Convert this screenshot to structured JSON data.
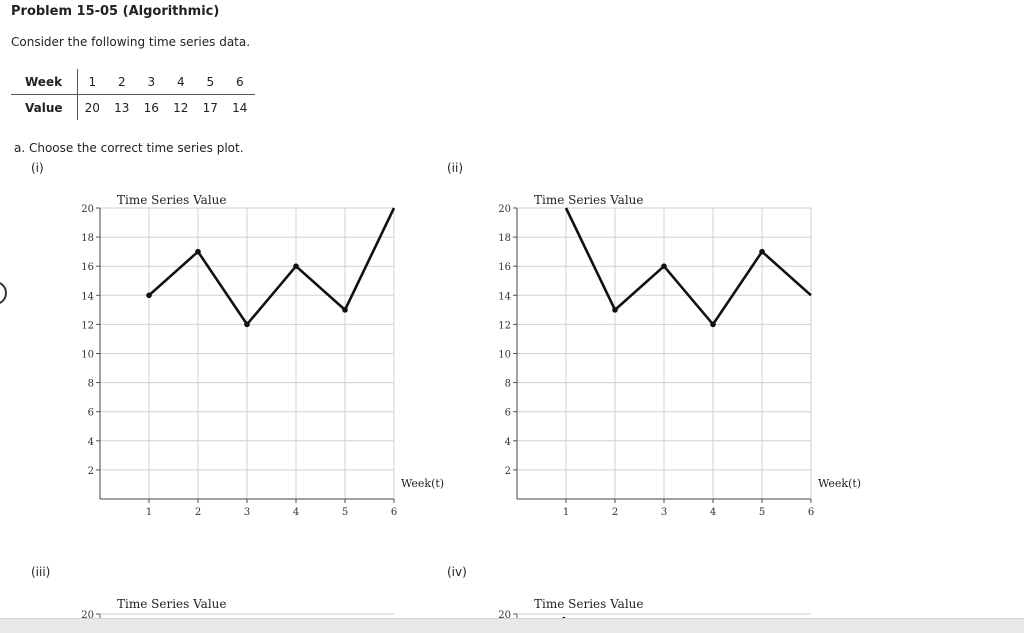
{
  "problem": {
    "title": "Problem 15-05 (Algorithmic)",
    "intro": "Consider the following time series data."
  },
  "table": {
    "row_headers": [
      "Week",
      "Value"
    ],
    "weeks": [
      "1",
      "2",
      "3",
      "4",
      "5",
      "6"
    ],
    "values": [
      "20",
      "13",
      "16",
      "12",
      "17",
      "14"
    ]
  },
  "question": {
    "text": "a. Choose the correct time series plot."
  },
  "options": [
    "(i)",
    "(ii)",
    "(iii)",
    "(iv)"
  ],
  "chart_data": [
    {
      "type": "line",
      "option": "(i)",
      "title": "Time Series Value",
      "xlabel": "Week(t)",
      "ylabel": "",
      "x": [
        1,
        2,
        3,
        4,
        5,
        6
      ],
      "y": [
        14,
        17,
        12,
        16,
        13,
        20
      ],
      "xlim": [
        0,
        6
      ],
      "ylim": [
        0,
        20
      ],
      "xticks": [
        "1",
        "2",
        "3",
        "4",
        "5",
        "6"
      ],
      "yticks": [
        "2",
        "4",
        "6",
        "8",
        "10",
        "12",
        "14",
        "16",
        "18",
        "20"
      ],
      "grid": true,
      "line_color": "#111111"
    },
    {
      "type": "line",
      "option": "(ii)",
      "title": "Time Series Value",
      "xlabel": "Week(t)",
      "ylabel": "",
      "x": [
        1,
        2,
        3,
        4,
        5,
        6
      ],
      "y": [
        20,
        13,
        16,
        12,
        17,
        14
      ],
      "xlim": [
        0,
        6
      ],
      "ylim": [
        0,
        20
      ],
      "xticks": [
        "1",
        "2",
        "3",
        "4",
        "5",
        "6"
      ],
      "yticks": [
        "2",
        "4",
        "6",
        "8",
        "10",
        "12",
        "14",
        "16",
        "18",
        "20"
      ],
      "grid": true,
      "line_color": "#111111"
    },
    {
      "type": "line",
      "option": "(iii)",
      "title": "Time Series Value",
      "yticks": [
        "20"
      ]
    },
    {
      "type": "line",
      "option": "(iv)",
      "title": "Time Series Value",
      "yticks": [
        "20"
      ]
    }
  ]
}
